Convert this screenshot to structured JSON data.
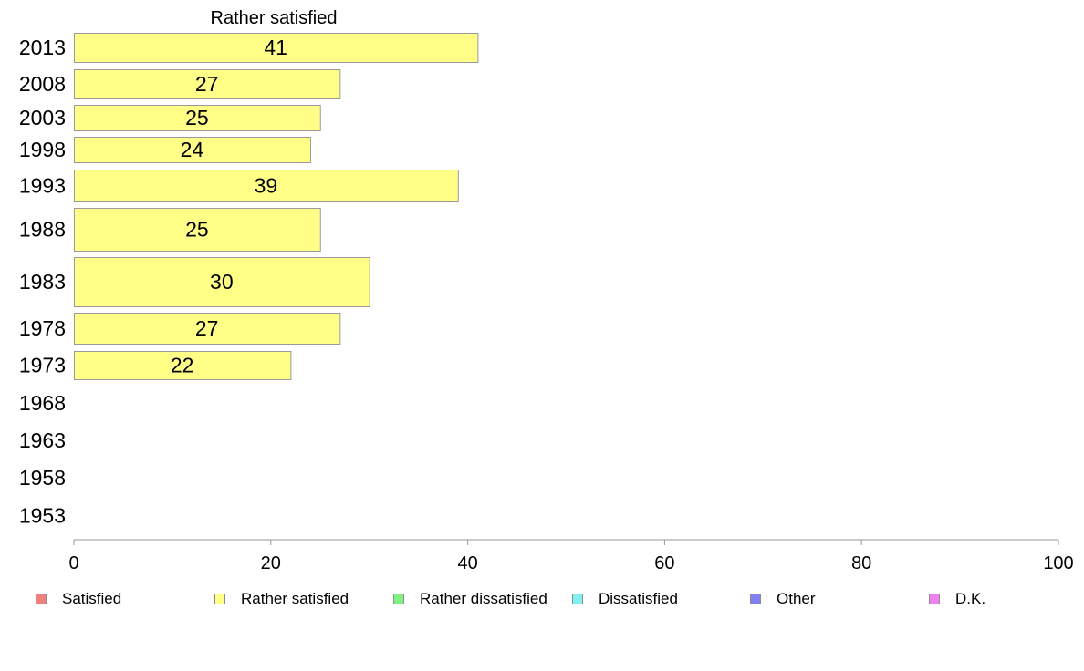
{
  "chart_data": {
    "type": "bar",
    "orientation": "horizontal",
    "title": "Rather satisfied",
    "categories": [
      "2013",
      "2008",
      "2003",
      "1998",
      "1993",
      "1988",
      "1983",
      "1978",
      "1973",
      "1968",
      "1963",
      "1958",
      "1953"
    ],
    "series": [
      {
        "name": "Rather satisfied",
        "color": "#ffff88",
        "values": [
          41,
          27,
          25,
          24,
          39,
          25,
          30,
          27,
          22,
          null,
          null,
          null,
          null
        ],
        "data_labels": [
          "41",
          "27",
          "25",
          "24",
          "39",
          "25",
          "30",
          "27",
          "22",
          "",
          "",
          "",
          ""
        ]
      }
    ],
    "x_ticks": [
      "0",
      "20",
      "40",
      "60",
      "80",
      "100"
    ],
    "xlim": [
      0,
      100
    ],
    "grid": false,
    "legend_position": "bottom",
    "legend": [
      {
        "label": "Satisfied",
        "color": "#f08080"
      },
      {
        "label": "Rather satisfied",
        "color": "#ffff88"
      },
      {
        "label": "Rather dissatisfied",
        "color": "#80f080"
      },
      {
        "label": "Dissatisfied",
        "color": "#80f0f0"
      },
      {
        "label": "Other",
        "color": "#8080f0"
      },
      {
        "label": "D.K.",
        "color": "#f080f0"
      }
    ]
  }
}
